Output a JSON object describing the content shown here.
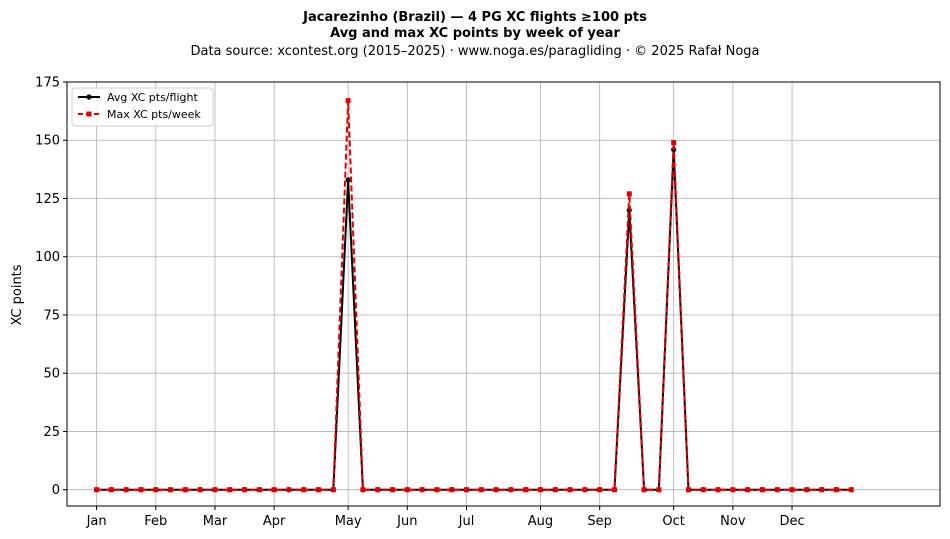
{
  "chart_data": {
    "type": "line",
    "title": "Jacarezinho (Brazil)  —  4 PG XC flights ≥100 pts",
    "subtitle": "Avg and max XC points by week of year",
    "source_note": "Data source: xcontest.org (2015–2025)  ·  www.noga.es/paragliding  ·  © 2025 Rafał Noga",
    "xlabel": "",
    "ylabel": "XC points",
    "x_domain": "week of year",
    "xlim": [
      -2,
      57
    ],
    "ylim": [
      -7,
      175
    ],
    "yticks": [
      0,
      25,
      50,
      75,
      100,
      125,
      150,
      175
    ],
    "xticks": [
      {
        "label": "Jan",
        "week": 0
      },
      {
        "label": "Feb",
        "week": 4
      },
      {
        "label": "Mar",
        "week": 8
      },
      {
        "label": "Apr",
        "week": 12
      },
      {
        "label": "May",
        "week": 17
      },
      {
        "label": "Jun",
        "week": 21
      },
      {
        "label": "Jul",
        "week": 25
      },
      {
        "label": "Aug",
        "week": 30
      },
      {
        "label": "Sep",
        "week": 34
      },
      {
        "label": "Oct",
        "week": 39
      },
      {
        "label": "Nov",
        "week": 43
      },
      {
        "label": "Dec",
        "week": 47
      }
    ],
    "grid": true,
    "legend_position": "top-left",
    "x": [
      0,
      1,
      2,
      3,
      4,
      5,
      6,
      7,
      8,
      9,
      10,
      11,
      12,
      13,
      14,
      15,
      16,
      17,
      18,
      19,
      20,
      21,
      22,
      23,
      24,
      25,
      26,
      27,
      28,
      29,
      30,
      31,
      32,
      33,
      34,
      35,
      36,
      37,
      38,
      39,
      40,
      41,
      42,
      43,
      44,
      45,
      46,
      47,
      48,
      49,
      50,
      51
    ],
    "series": [
      {
        "name": "Avg XC pts/flight",
        "color": "#000000",
        "style": "solid",
        "marker": "circle",
        "values": [
          0,
          0,
          0,
          0,
          0,
          0,
          0,
          0,
          0,
          0,
          0,
          0,
          0,
          0,
          0,
          0,
          0,
          133,
          0,
          0,
          0,
          0,
          0,
          0,
          0,
          0,
          0,
          0,
          0,
          0,
          0,
          0,
          0,
          0,
          0,
          0,
          120,
          0,
          0,
          146,
          0,
          0,
          0,
          0,
          0,
          0,
          0,
          0,
          0,
          0,
          0,
          0
        ]
      },
      {
        "name": "Max XC pts/week",
        "color": "#e00000",
        "style": "dashed",
        "marker": "square",
        "values": [
          0,
          0,
          0,
          0,
          0,
          0,
          0,
          0,
          0,
          0,
          0,
          0,
          0,
          0,
          0,
          0,
          0,
          167,
          0,
          0,
          0,
          0,
          0,
          0,
          0,
          0,
          0,
          0,
          0,
          0,
          0,
          0,
          0,
          0,
          0,
          0,
          127,
          0,
          0,
          149,
          0,
          0,
          0,
          0,
          0,
          0,
          0,
          0,
          0,
          0,
          0,
          0
        ]
      }
    ]
  }
}
